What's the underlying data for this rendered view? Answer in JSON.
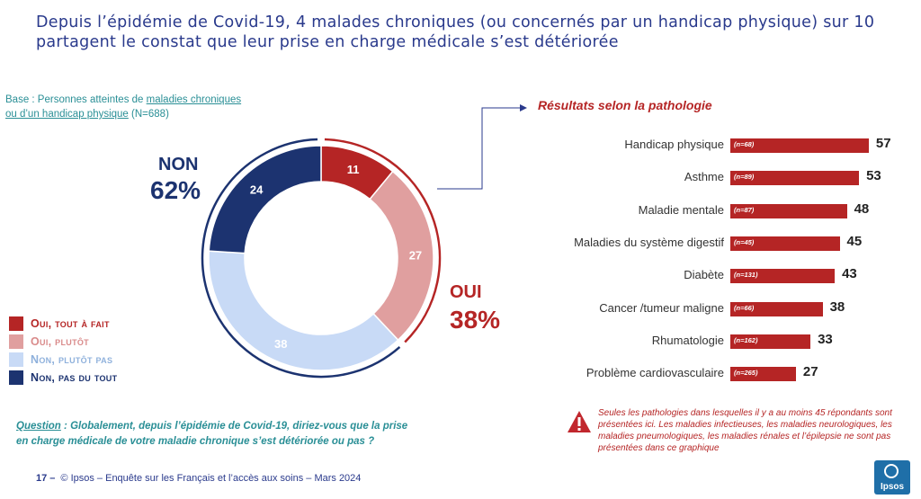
{
  "title": "Depuis l’épidémie de Covid-19, 4 malades chroniques (ou concernés par un handicap physique) sur 10  partagent le constat que leur prise en charge médicale s’est détériorée",
  "base": {
    "prefix": "Base : Personnes atteintes de ",
    "link1": "maladies chroniques",
    "link2": "ou d’un handicap physique",
    "suffix": " (N=688)"
  },
  "non": {
    "label": "NON",
    "pct": "62%"
  },
  "oui": {
    "label": "OUI",
    "pct": "38%"
  },
  "legend": [
    {
      "label": "Oui, tout à fait",
      "color": "#b52525"
    },
    {
      "label": "Oui, plutôt",
      "color": "#e09f9f"
    },
    {
      "label": "Non, plutôt pas",
      "color": "#c8daf6"
    },
    {
      "label": "Non, pas du tout",
      "color": "#1c3370"
    }
  ],
  "question": {
    "label": "Question",
    "text": " : Globalement, depuis l’épidémie de Covid-19, diriez-vous que la prise en charge médicale de votre maladie chronique s’est détériorée ou pas ?"
  },
  "footer": {
    "page": "17 –",
    "text": "© Ipsos – Enquête sur les Français et l’accès aux soins – Mars 2024"
  },
  "results_title": "Résultats selon la pathologie",
  "note": "Seules les pathologies dans lesquelles il y a au moins 45 répondants sont présentées ici. Les maladies infectieuses, les maladies neurologiques, les maladies pneumologiques, les maladies rénales et l’épilepsie ne sont pas présentées dans ce graphique",
  "logo_text": "Ipsos",
  "chart_data": [
    {
      "type": "pie",
      "categories": [
        "Oui, tout à fait",
        "Oui, plutôt",
        "Non, plutôt pas",
        "Non, pas du tout"
      ],
      "values": [
        11,
        27,
        38,
        24
      ],
      "labels": [
        "11",
        "27",
        "38",
        "24"
      ],
      "colors": [
        "#b52525",
        "#e09f9f",
        "#c8daf6",
        "#1c3370"
      ]
    },
    {
      "type": "bar",
      "title": "Résultats selon la pathologie",
      "categories": [
        "Handicap physique",
        "Asthme",
        "Maladie mentale",
        "Maladies du système digestif",
        "Diabète",
        "Cancer /tumeur maligne",
        "Rhumatologie",
        "Problème cardiovasculaire"
      ],
      "values": [
        57,
        53,
        48,
        45,
        43,
        38,
        33,
        27
      ],
      "value_labels": [
        "57",
        "53",
        "48",
        "45",
        "43",
        "38",
        "33",
        "27"
      ],
      "n_labels": [
        "(n=68)",
        "(n=89)",
        "(n=87)",
        "(n=45)",
        "(n=131)",
        "(n=66)",
        "(n=162)",
        "(n=265)"
      ],
      "color": "#b52525"
    }
  ]
}
